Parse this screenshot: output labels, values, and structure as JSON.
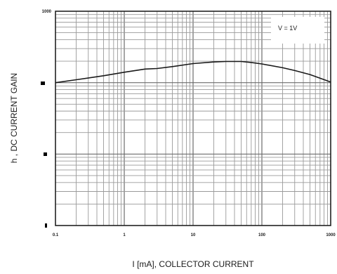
{
  "chart_data": {
    "type": "line",
    "xscale": "log",
    "yscale": "log",
    "xlim": [
      0.1,
      1000
    ],
    "ylim": [
      1,
      1000
    ],
    "x_tick_labels": [
      "0.1",
      "1",
      "10",
      "100",
      "1000"
    ],
    "y_tick_labels": [
      "1000"
    ],
    "xlabel": "I [mA], COLLECTOR CURRENT",
    "ylabel": "h , DC CURRENT GAIN",
    "annotation": "V = 1V",
    "grid": true,
    "series": [
      {
        "x": [
          0.1,
          0.2,
          0.5,
          1,
          2,
          3,
          5,
          10,
          20,
          30,
          50,
          70,
          100,
          200,
          300,
          500,
          1000
        ],
        "y": [
          100,
          110,
          125,
          140,
          155,
          158,
          168,
          185,
          195,
          198,
          198,
          192,
          183,
          162,
          148,
          130,
          102
        ]
      }
    ]
  }
}
